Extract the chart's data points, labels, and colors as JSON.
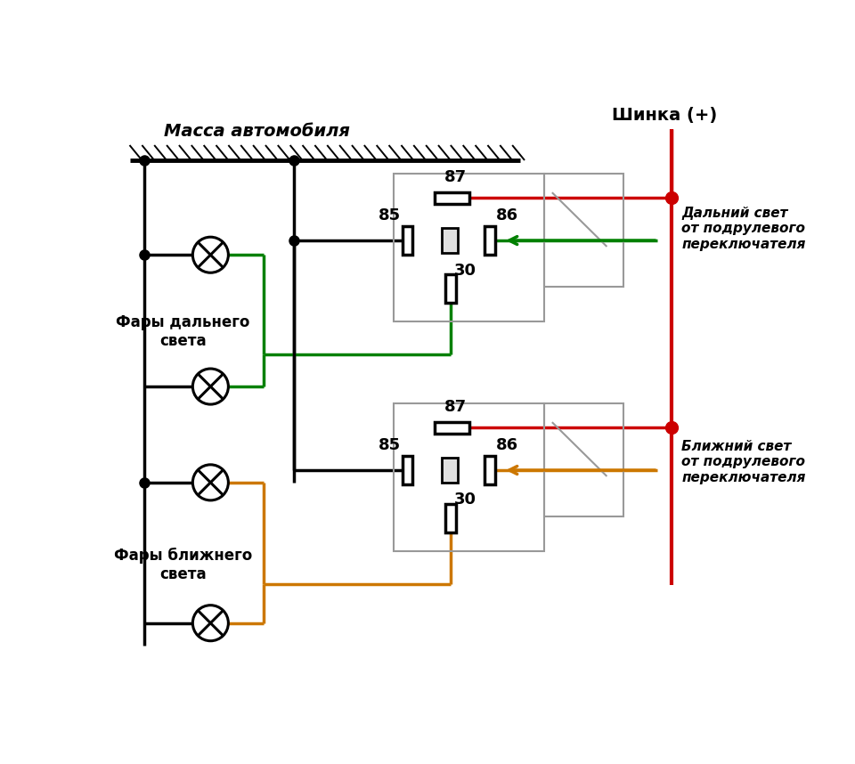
{
  "title_massa": "Масса автомобиля",
  "title_shinka": "Шинка (+)",
  "label_dalny": "Дальний свет\nот подрулевого\nпереключателя",
  "label_blizhny": "Ближний свет\nот подрулевого\nпереключателя",
  "label_fary_dalnego": "Фары дальнего\nсвета",
  "label_fary_blizhnego": "Фары ближнего\nсвета",
  "color_black": "#000000",
  "color_red": "#cc0000",
  "color_green": "#008000",
  "color_orange": "#cc7700",
  "color_gray": "#999999",
  "color_bg": "#ffffff"
}
